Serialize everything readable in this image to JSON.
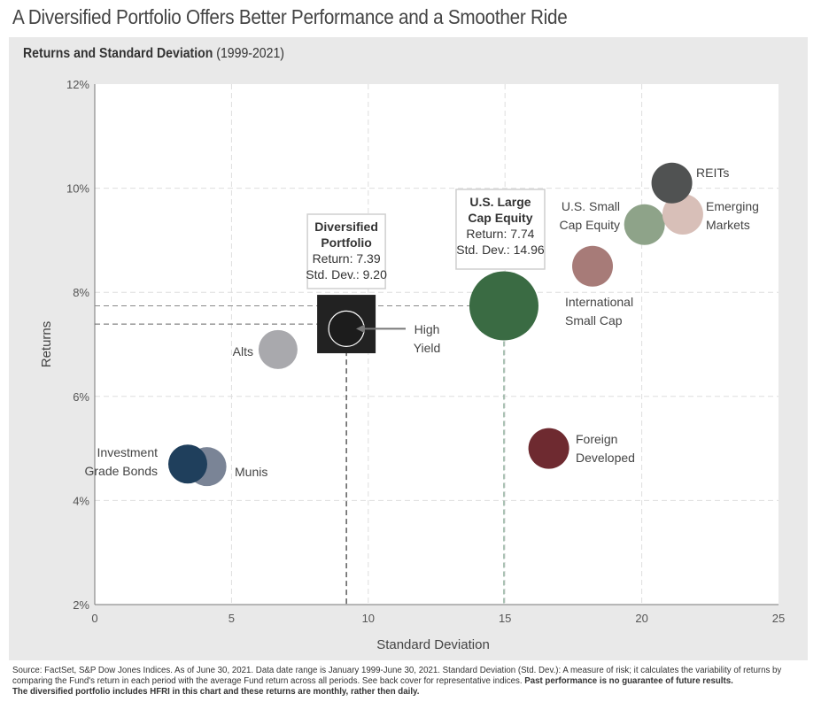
{
  "header": {
    "title": "A Diversified Portfolio Offers Better Performance and a Smoother Ride",
    "subtitle_bold": "Returns and Standard Deviation",
    "subtitle_range": "(1999-2021)"
  },
  "chart_data": {
    "type": "scatter",
    "xlabel": "Standard Deviation",
    "ylabel": "Returns",
    "xlim": [
      0,
      25
    ],
    "ylim": [
      2,
      12
    ],
    "x_ticks": [
      "0",
      "5",
      "10",
      "15",
      "20",
      "25"
    ],
    "y_ticks": [
      "2%",
      "4%",
      "6%",
      "8%",
      "10%",
      "12%"
    ],
    "grid": true,
    "series": [
      {
        "name": "Investment Grade Bonds",
        "x": 3.4,
        "y": 4.7,
        "color": "#1f3f5c"
      },
      {
        "name": "Munis",
        "x": 4.1,
        "y": 4.65,
        "color": "#7a8496"
      },
      {
        "name": "Alts",
        "x": 6.7,
        "y": 6.9,
        "color": "#a9a9ad"
      },
      {
        "name": "Diversified Portfolio",
        "x": 9.2,
        "y": 7.39,
        "color": "#222222"
      },
      {
        "name": "High Yield",
        "x": 9.2,
        "y": 7.3,
        "color": "#1c1c1c"
      },
      {
        "name": "U.S. Large Cap Equity",
        "x": 14.96,
        "y": 7.74,
        "color": "#3a6b43"
      },
      {
        "name": "Foreign Developed",
        "x": 16.6,
        "y": 5.0,
        "color": "#6e2a30"
      },
      {
        "name": "International Small Cap",
        "x": 18.2,
        "y": 8.5,
        "color": "#a77b78"
      },
      {
        "name": "U.S. Small Cap Equity",
        "x": 20.1,
        "y": 9.3,
        "color": "#8ea389"
      },
      {
        "name": "Emerging Markets",
        "x": 21.5,
        "y": 9.5,
        "color": "#d8bfb8"
      },
      {
        "name": "REITs",
        "x": 21.1,
        "y": 10.1,
        "color": "#505252"
      }
    ],
    "callouts": {
      "diversified": {
        "line1": "Diversified",
        "line2": "Portfolio",
        "line3": "Return: 7.39",
        "line4": "Std. Dev.: 9.20"
      },
      "large_cap": {
        "line1": "U.S. Large",
        "line2": "Cap Equity",
        "line3": "Return: 7.74",
        "line4": "Std. Dev.: 14.96"
      }
    },
    "labels": {
      "inv_bonds": [
        "Investment",
        "Grade Bonds"
      ],
      "munis": [
        "Munis"
      ],
      "alts": [
        "Alts"
      ],
      "high_yield": [
        "High",
        "Yield"
      ],
      "foreign": [
        "Foreign",
        "Developed"
      ],
      "intl_small": [
        "International",
        "Small Cap"
      ],
      "us_small": [
        "U.S. Small",
        "Cap Equity"
      ],
      "emerging": [
        "Emerging",
        "Markets"
      ],
      "reits": [
        "REITs"
      ]
    }
  },
  "footer": {
    "source": "Source: FactSet, S&P Dow Jones Indices. As of June 30, 2021. Data date range is January 1999-June 30, 2021. Standard Deviation (Std. Dev.): A measure of risk; it calculates the variability of returns by comparing the Fund's return in each period with the average Fund return across all periods. See back cover for representative indices.",
    "bold1": "Past performance is no guarantee of future results.",
    "bold2": "The diversified portfolio includes HFRI in this chart and these returns are monthly, rather then daily."
  }
}
